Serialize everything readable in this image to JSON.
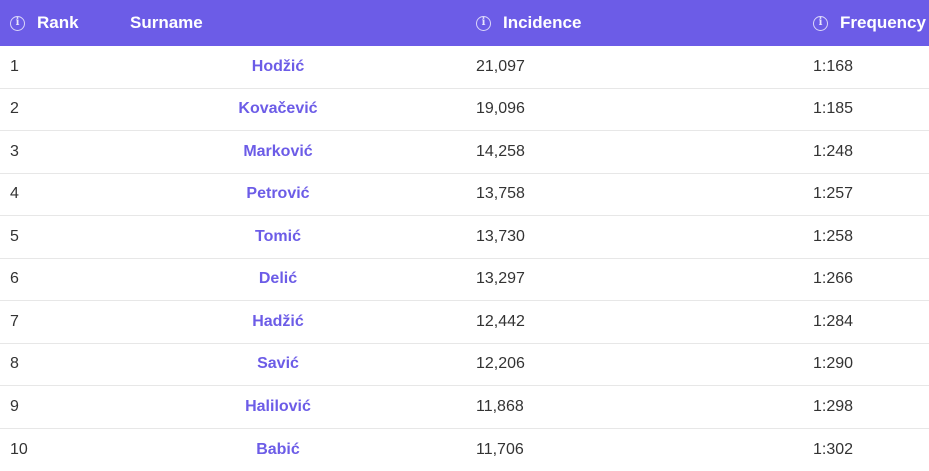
{
  "colors": {
    "header_bg": "#6c5ce7",
    "link": "#6c5ce7",
    "text": "#333333",
    "divider": "#e7e7e7"
  },
  "headers": {
    "rank": "Rank",
    "surname": "Surname",
    "incidence": "Incidence",
    "frequency": "Frequency",
    "info_icon": "info-icon"
  },
  "rows": [
    {
      "rank": "1",
      "surname": "Hodžić",
      "incidence": "21,097",
      "frequency": "1:168"
    },
    {
      "rank": "2",
      "surname": "Kovačević",
      "incidence": "19,096",
      "frequency": "1:185"
    },
    {
      "rank": "3",
      "surname": "Marković",
      "incidence": "14,258",
      "frequency": "1:248"
    },
    {
      "rank": "4",
      "surname": "Petrović",
      "incidence": "13,758",
      "frequency": "1:257"
    },
    {
      "rank": "5",
      "surname": "Tomić",
      "incidence": "13,730",
      "frequency": "1:258"
    },
    {
      "rank": "6",
      "surname": "Delić",
      "incidence": "13,297",
      "frequency": "1:266"
    },
    {
      "rank": "7",
      "surname": "Hadžić",
      "incidence": "12,442",
      "frequency": "1:284"
    },
    {
      "rank": "8",
      "surname": "Savić",
      "incidence": "12,206",
      "frequency": "1:290"
    },
    {
      "rank": "9",
      "surname": "Halilović",
      "incidence": "11,868",
      "frequency": "1:298"
    },
    {
      "rank": "10",
      "surname": "Babić",
      "incidence": "11,706",
      "frequency": "1:302"
    }
  ]
}
